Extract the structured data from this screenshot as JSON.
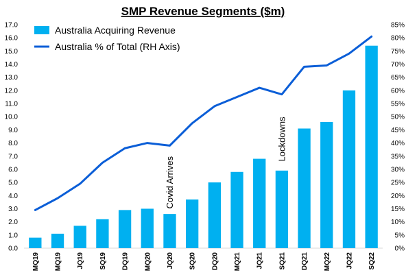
{
  "chart_data": {
    "type": "bar",
    "title": "SMP Revenue Segments ($m)",
    "categories": [
      "MQ19",
      "MQ19",
      "JQ19",
      "SQ19",
      "DQ19",
      "MQ20",
      "JQ20",
      "SQ20",
      "DQ20",
      "MQ21",
      "JQ21",
      "SQ21",
      "DQ21",
      "MQ22",
      "JQ22",
      "SQ22"
    ],
    "series": [
      {
        "name": "Australia Acquiring Revenue",
        "type": "bar",
        "axis": "left",
        "color": "#00b0f0",
        "values": [
          0.8,
          1.1,
          1.7,
          2.2,
          2.9,
          3.0,
          2.6,
          3.7,
          5.0,
          5.8,
          6.8,
          5.9,
          9.1,
          9.6,
          12.0,
          15.4
        ]
      },
      {
        "name": "Australia % of Total (RH Axis)",
        "type": "line",
        "axis": "right",
        "color": "#0b5ed7",
        "values": [
          14.5,
          19.0,
          24.5,
          32.5,
          38.0,
          40.0,
          39.0,
          47.5,
          54.0,
          57.5,
          61.0,
          58.5,
          69.0,
          69.5,
          74.0,
          80.5
        ]
      }
    ],
    "y_left": {
      "range": [
        0,
        17
      ],
      "ticks": [
        "0.0",
        "1.0",
        "2.0",
        "3.0",
        "4.0",
        "5.0",
        "6.0",
        "7.0",
        "8.0",
        "9.0",
        "10.0",
        "11.0",
        "12.0",
        "13.0",
        "14.0",
        "15.0",
        "16.0",
        "17.0"
      ]
    },
    "y_right": {
      "range": [
        0,
        85
      ],
      "ticks": [
        "0%",
        "5%",
        "10%",
        "15%",
        "20%",
        "25%",
        "30%",
        "35%",
        "40%",
        "45%",
        "50%",
        "55%",
        "60%",
        "65%",
        "70%",
        "75%",
        "80%",
        "85%"
      ]
    },
    "grid": false,
    "legend": {
      "position": "top-left",
      "entries": [
        "Australia Acquiring Revenue",
        "Australia % of Total (RH Axis)"
      ]
    },
    "annotations": [
      {
        "text": "Covid Arrives",
        "category_index": 6,
        "y_value": 3.0
      },
      {
        "text": "Lockdowns",
        "category_index": 11,
        "y_value": 6.6
      }
    ]
  }
}
